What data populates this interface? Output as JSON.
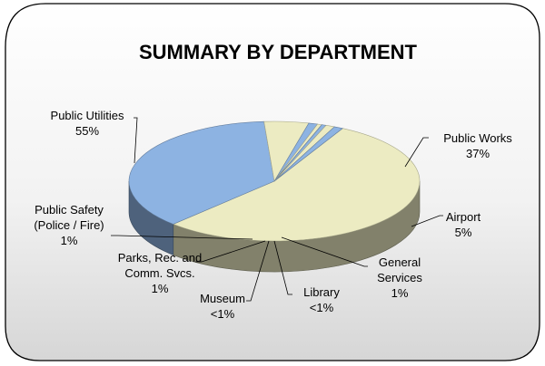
{
  "chart_data": {
    "type": "pie",
    "title": "SUMMARY BY DEPARTMENT",
    "slices": [
      {
        "label": [
          "Public Utilities"
        ],
        "value_label": "55%",
        "value": 55,
        "color": "#ecebc2"
      },
      {
        "label": [
          "Public Works"
        ],
        "value_label": "37%",
        "value": 37,
        "color": "#8db3e2"
      },
      {
        "label": [
          "Airport"
        ],
        "value_label": "5%",
        "value": 5,
        "color": "#ecebc2"
      },
      {
        "label": [
          "General",
          "Services"
        ],
        "value_label": "1%",
        "value": 1,
        "color": "#8db3e2"
      },
      {
        "label": [
          "Library"
        ],
        "value_label": "<1%",
        "value": 0.5,
        "color": "#ecebc2"
      },
      {
        "label": [
          "Museum"
        ],
        "value_label": "<1%",
        "value": 0.5,
        "color": "#8db3e2"
      },
      {
        "label": [
          "Parks, Rec. and",
          "Comm. Svcs."
        ],
        "value_label": "1%",
        "value": 1,
        "color": "#ecebc2"
      },
      {
        "label": [
          "Public Safety",
          "(Police / Fire)"
        ],
        "value_label": "1%",
        "value": 1,
        "color": "#8db3e2"
      }
    ]
  }
}
